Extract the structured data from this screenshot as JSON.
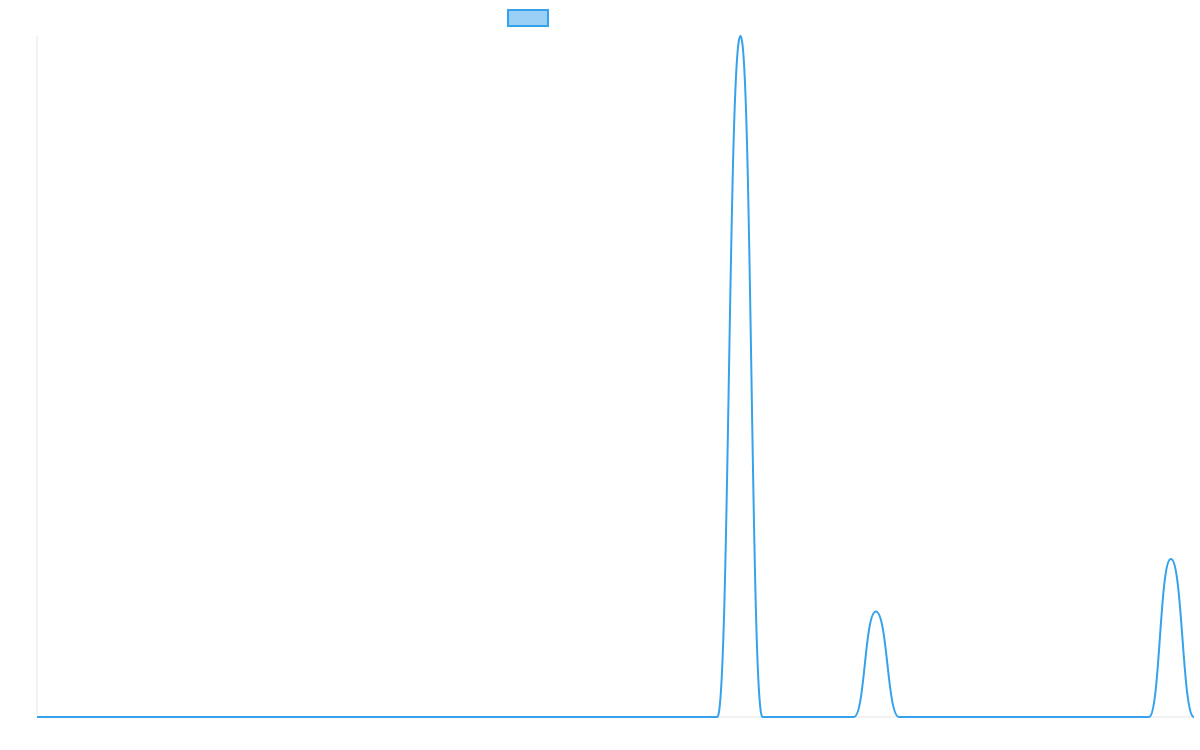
{
  "chart_data": {
    "type": "line",
    "title": "",
    "xlabel": "",
    "ylabel": "",
    "grid": false,
    "legend": {
      "placement": "top-center",
      "entries": [
        {
          "label": "",
          "color": "#36a2eb",
          "fill": "#9ad0f5"
        }
      ]
    },
    "colors": {
      "line": "#36a2eb",
      "legend_fill": "#9ad0f5",
      "axis": "#e5e5e5"
    },
    "xlim": [
      0,
      1
    ],
    "ylim": [
      0,
      1
    ],
    "series": [
      {
        "color": "#36a2eb",
        "x": [
          0,
          0.588,
          0.608,
          0.627,
          0.706,
          0.725,
          0.745,
          0.961,
          0.98,
          1.0
        ],
        "y": [
          0,
          0,
          1.0,
          0,
          0,
          0.155,
          0,
          0,
          0.232,
          0
        ]
      }
    ]
  }
}
